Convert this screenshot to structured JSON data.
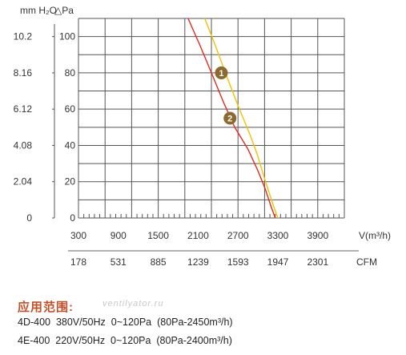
{
  "chart_data": {
    "type": "line",
    "x_unit": "V(m³/h)",
    "x_secondary_unit": "CFM",
    "y_unit_right": "△Pa",
    "y_unit_left": "mm H₂O",
    "x_ticks": [
      "300",
      "900",
      "1500",
      "2100",
      "2700",
      "3300",
      "3900"
    ],
    "x_secondary_ticks": [
      "178",
      "531",
      "885",
      "1239",
      "1593",
      "1947",
      "2301"
    ],
    "y_ticks": [
      "0",
      "20",
      "40",
      "60",
      "80",
      "100"
    ],
    "y_left_ticks": [
      "0",
      "2.04",
      "4.08",
      "6.12",
      "8.16",
      "10.2"
    ],
    "xlim": [
      300,
      4300
    ],
    "ylim": [
      0,
      110
    ],
    "grid": true,
    "series": [
      {
        "name": "1",
        "color": "#f2c200",
        "x": [
          2200,
          2360,
          2520,
          2700,
          2880,
          2990,
          3080,
          3150,
          3240,
          3300
        ],
        "y": [
          110,
          95,
          79,
          62,
          46,
          35,
          24,
          16,
          6,
          0
        ]
      },
      {
        "name": "2",
        "color": "#e22a1f",
        "x": [
          1950,
          2130,
          2300,
          2480,
          2650,
          2850,
          3000,
          3110,
          3200,
          3260
        ],
        "y": [
          110,
          95,
          80,
          64,
          50,
          38,
          26,
          16,
          6,
          0
        ]
      }
    ],
    "markers": [
      {
        "label": "1",
        "x": 2450,
        "y": 80
      },
      {
        "label": "2",
        "x": 2580,
        "y": 55
      }
    ]
  },
  "caption": {
    "title": "应用范围:",
    "watermark": "ventilyator.ru",
    "lines": [
      "4D-400  380V/50Hz  0~120Pa  (80Pa-2450m³/h)",
      "4E-400  220V/50Hz  0~120Pa  (80Pa-2400m³/h)"
    ]
  }
}
